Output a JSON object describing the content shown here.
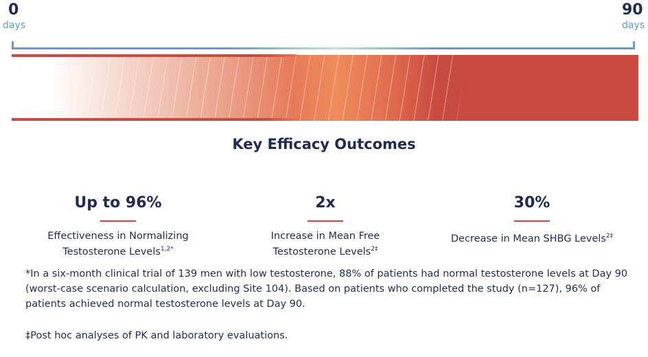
{
  "timeline": {
    "start_value": "0",
    "start_unit": "days",
    "end_value": "90",
    "end_unit": "days",
    "colors": {
      "bracket": "#6a9cc7",
      "band": "#c84b3f",
      "band_mid": "#ef8b5b"
    }
  },
  "title": "Key Efficacy Outcomes",
  "stats": [
    {
      "value": "Up to 96%",
      "desc_line1": "Effectiveness in Normalizing",
      "desc_line2": "Testosterone Levels",
      "sup": "1,2*"
    },
    {
      "value": "2x",
      "desc_line1": "Increase in Mean Free",
      "desc_line2": "Testosterone Levels",
      "sup": "2‡"
    },
    {
      "value": "30%",
      "desc_line1": "Decrease in Mean SHBG Levels",
      "desc_line2": "",
      "sup": "2‡"
    }
  ],
  "footnotes": [
    "*In a six-month clinical trial of 139 men with low testosterone, 88% of patients had normal testosterone levels at Day 90 (worst-case scenario calculation, excluding Site 104). Based on patients who completed the study (n=127), 96% of patients achieved normal testosterone levels at Day 90.",
    "‡Post hoc analyses of PK and laboratory evaluations."
  ]
}
